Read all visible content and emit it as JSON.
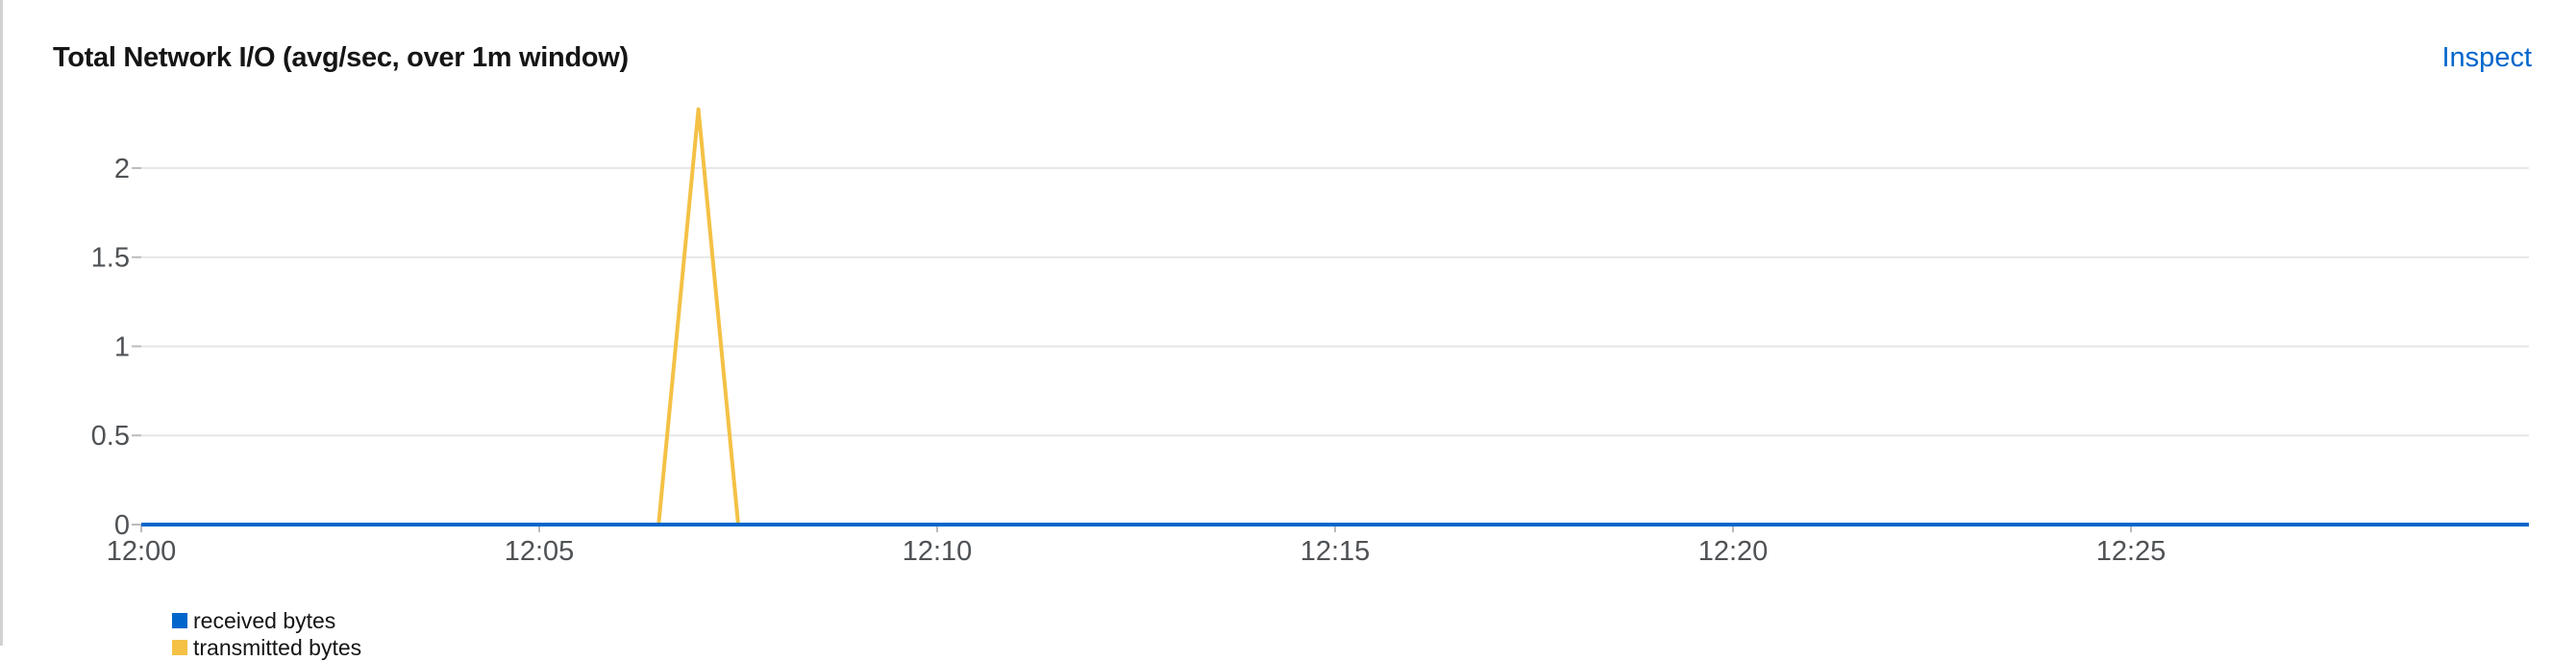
{
  "panel": {
    "title": "Total Network I/O (avg/sec, over 1m window)",
    "inspect_label": "Inspect"
  },
  "chart_data": {
    "type": "line",
    "title": "Total Network I/O (avg/sec, over 1m window)",
    "xlabel": "",
    "ylabel": "",
    "x_ticks": [
      "12:00",
      "12:05",
      "12:10",
      "12:15",
      "12:20",
      "12:25"
    ],
    "y_ticks": [
      "0",
      "0.5",
      "1",
      "1.5",
      "2"
    ],
    "xlim_minutes_since_1200": [
      0,
      30
    ],
    "ylim": [
      0,
      2.35
    ],
    "grid": true,
    "legend_placement": "bottom-left",
    "series": [
      {
        "name": "received bytes",
        "color": "#0066cc",
        "points": [
          [
            0,
            0
          ],
          [
            6.5,
            0
          ],
          [
            7.5,
            0
          ],
          [
            30,
            0
          ]
        ]
      },
      {
        "name": "transmitted bytes",
        "color": "#f4c145",
        "points": [
          [
            0,
            0
          ],
          [
            6.5,
            0
          ],
          [
            7.0,
            2.33
          ],
          [
            7.5,
            0
          ],
          [
            30,
            0
          ]
        ]
      }
    ]
  }
}
